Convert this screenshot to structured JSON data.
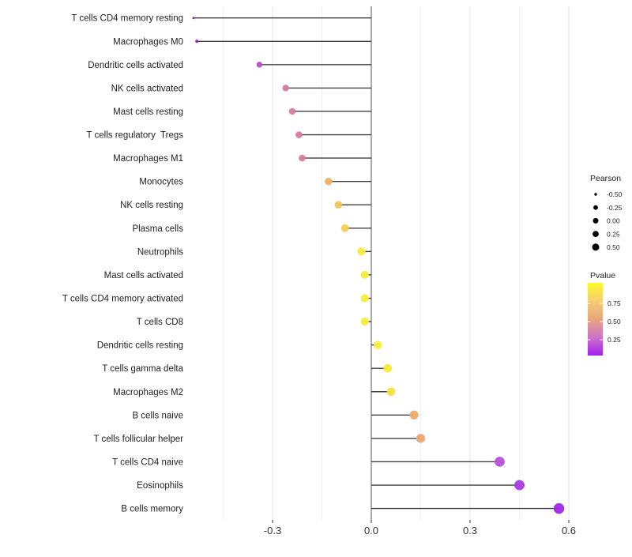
{
  "chart_data": {
    "type": "scatter",
    "variant": "lollipop",
    "orientation": "horizontal",
    "title": "",
    "xlabel": "",
    "ylabel": "",
    "grid": true,
    "legend_position": "right",
    "categories": [
      "T cells CD4 memory resting",
      "Macrophages M0",
      "Dendritic cells activated",
      "NK cells activated",
      "Mast cells resting",
      "T cells regulatory  Tregs",
      "Macrophages M1",
      "Monocytes",
      "NK cells resting",
      "Plasma cells",
      "Neutrophils",
      "Mast cells activated",
      "T cells CD4 memory activated",
      "T cells CD8",
      "Dendritic cells resting",
      "T cells gamma delta",
      "Macrophages M2",
      "B cells naive",
      "T cells follicular helper",
      "T cells CD4 naive",
      "Eosinophils",
      "B cells memory"
    ],
    "series": [
      {
        "name": "Pearson",
        "values": [
          -0.54,
          -0.53,
          -0.34,
          -0.26,
          -0.24,
          -0.22,
          -0.21,
          -0.13,
          -0.1,
          -0.08,
          -0.03,
          -0.02,
          -0.02,
          -0.02,
          0.02,
          0.05,
          0.06,
          0.13,
          0.15,
          0.39,
          0.45,
          0.57
        ]
      },
      {
        "name": "Pvalue",
        "values": [
          0.02,
          0.02,
          0.13,
          0.33,
          0.35,
          0.36,
          0.37,
          0.6,
          0.67,
          0.7,
          0.9,
          0.92,
          0.92,
          0.91,
          0.93,
          0.89,
          0.85,
          0.62,
          0.57,
          0.16,
          0.09,
          0.04
        ]
      }
    ],
    "point_colors": [
      "#8e22c8",
      "#8e22c8",
      "#bd4ccd",
      "#d577a6",
      "#d67da0",
      "#d67e9e",
      "#d6809b",
      "#efb066",
      "#f2c55a",
      "#f4cd52",
      "#f8ec38",
      "#f8ee3c",
      "#f8ee3c",
      "#f8ed3a",
      "#f9ef3e",
      "#f8ea38",
      "#f6e242",
      "#eeab68",
      "#eca673",
      "#b551d8",
      "#aa3ae2",
      "#a028e8"
    ],
    "x_tick_labels": [
      "-0.3",
      "0.0",
      "0.3",
      "0.6"
    ],
    "x_tick_values": [
      -0.3,
      0.0,
      0.3,
      0.6
    ],
    "xlim": [
      -0.56,
      0.64
    ]
  },
  "legend": {
    "pearson": {
      "title": "Pearson",
      "items": [
        {
          "label": "-0.50",
          "value": -0.5
        },
        {
          "label": "-0.25",
          "value": -0.25
        },
        {
          "label": "0.00",
          "value": 0.0
        },
        {
          "label": "0.25",
          "value": 0.25
        },
        {
          "label": "0.50",
          "value": 0.5
        }
      ]
    },
    "pvalue": {
      "title": "Pvalue",
      "tick_labels": [
        "0.75",
        "0.50",
        "0.25"
      ],
      "gradient_stops": [
        "#FCF926",
        "#F5CE74",
        "#E8A57E",
        "#CD72C8",
        "#A422F0"
      ],
      "high_color": "#FFFF00",
      "low_color": "#A020F0"
    }
  },
  "colors": {
    "lollipop_line": "#404040",
    "zero_line": "#555555",
    "grid_major": "#e6e6e6",
    "grid_minor": "#f2f2f2",
    "axis_tick": "#333333",
    "point_outline_alpha": "none",
    "background": "#ffffff"
  }
}
